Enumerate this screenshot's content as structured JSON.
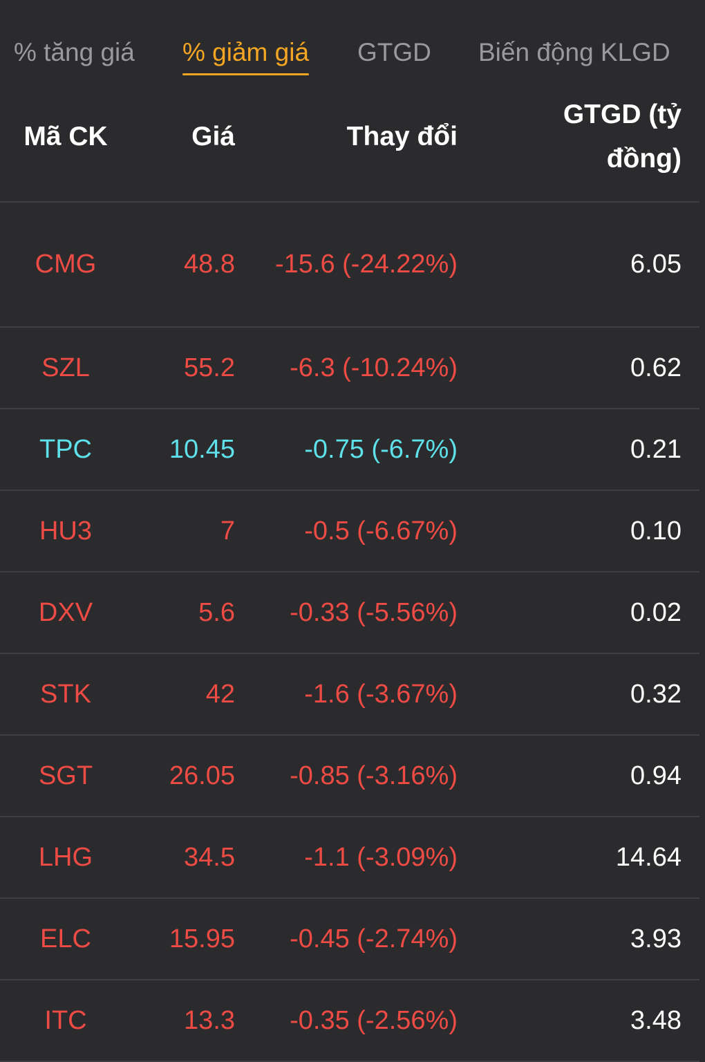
{
  "tabs": [
    {
      "label": "% tăng giá",
      "active": false
    },
    {
      "label": "% giảm giá",
      "active": true
    },
    {
      "label": "GTGD",
      "active": false
    },
    {
      "label": "Biến động KLGD",
      "active": false
    }
  ],
  "columns": {
    "symbol": "Mã CK",
    "price": "Giá",
    "change": "Thay đổi",
    "value": "GTGD (tỷ đồng)"
  },
  "colors": {
    "down": "#ef4b45",
    "floor": "#5ee1ea",
    "accent": "#f5a623"
  },
  "rows": [
    {
      "symbol": "CMG",
      "price": "48.8",
      "change": "-15.6 (-24.22%)",
      "value": "6.05",
      "color": "down"
    },
    {
      "symbol": "SZL",
      "price": "55.2",
      "change": "-6.3 (-10.24%)",
      "value": "0.62",
      "color": "down"
    },
    {
      "symbol": "TPC",
      "price": "10.45",
      "change": "-0.75 (-6.7%)",
      "value": "0.21",
      "color": "floor"
    },
    {
      "symbol": "HU3",
      "price": "7",
      "change": "-0.5 (-6.67%)",
      "value": "0.10",
      "color": "down"
    },
    {
      "symbol": "DXV",
      "price": "5.6",
      "change": "-0.33 (-5.56%)",
      "value": "0.02",
      "color": "down"
    },
    {
      "symbol": "STK",
      "price": "42",
      "change": "-1.6 (-3.67%)",
      "value": "0.32",
      "color": "down"
    },
    {
      "symbol": "SGT",
      "price": "26.05",
      "change": "-0.85 (-3.16%)",
      "value": "0.94",
      "color": "down"
    },
    {
      "symbol": "LHG",
      "price": "34.5",
      "change": "-1.1 (-3.09%)",
      "value": "14.64",
      "color": "down"
    },
    {
      "symbol": "ELC",
      "price": "15.95",
      "change": "-0.45 (-2.74%)",
      "value": "3.93",
      "color": "down"
    },
    {
      "symbol": "ITC",
      "price": "13.3",
      "change": "-0.35 (-2.56%)",
      "value": "3.48",
      "color": "down"
    }
  ]
}
